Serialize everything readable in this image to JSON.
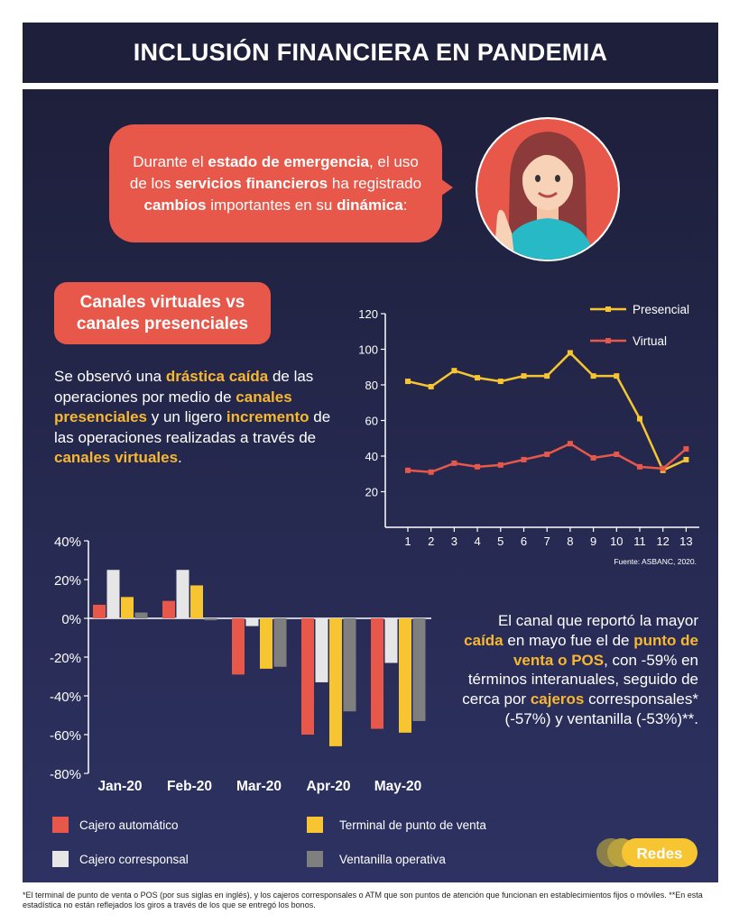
{
  "header": {
    "title": "INCLUSIÓN FINANCIERA EN PANDEMIA"
  },
  "bubble": {
    "t1": "Durante el ",
    "t1b": "estado de emergencia",
    "t2": ", el uso de los ",
    "t2b": "servicios financieros",
    "t3": " ha registrado ",
    "t3b": "cambios",
    "t4": " importantes en su ",
    "t4b": "dinámica",
    "t5": ":"
  },
  "section": {
    "title": "Canales virtuales vs canales presenciales"
  },
  "para1": {
    "p1": "Se observó una ",
    "h1": "drástica caída",
    "p2": " de las operaciones por medio de ",
    "h2": "canales presenciales",
    "p3": " y un ligero ",
    "h3": "incremento",
    "p4": " de las operaciones realizadas a través de ",
    "h4": "canales virtuales",
    "p5": "."
  },
  "para2": {
    "p1": "El canal que reportó la mayor ",
    "h1": "caída",
    "p2": " en mayo fue el de ",
    "h2": "punto de venta o POS",
    "p3": ", con -59% en términos interanuales, seguido de cerca por ",
    "h3": "cajeros",
    "p4": " corresponsales* (-57%) y ventanilla (-53%)**."
  },
  "source": "Fuente: ASBANC, 2020.",
  "legend": {
    "cajero_automatico": "Cajero automático",
    "terminal_pos": "Terminal de punto de venta",
    "cajero_corresponsal": "Cajero corresponsal",
    "ventanilla": "Ventanilla operativa"
  },
  "logo": {
    "text": "Redes"
  },
  "footnote": "*El terminal de punto de venta o POS (por sus siglas en inglés), y los cajeros corresponsales o ATM  que son puntos de atención que funcionan en establecimientos fijos o móviles. **En esta estadística no están reflejados los giros a través de los que se entregó los bonos.",
  "colors": {
    "red": "#e8584a",
    "yellow": "#f7c531",
    "light": "#e6e6e6",
    "gray": "#7f7f7f",
    "navy": "#1e1f3b"
  },
  "chart_data": [
    {
      "type": "line",
      "x": [
        1,
        2,
        3,
        4,
        5,
        6,
        7,
        8,
        9,
        10,
        11,
        12,
        13
      ],
      "x_ticks": [
        "1",
        "2",
        "3",
        "4",
        "5",
        "6",
        "7",
        "8",
        "9",
        "10",
        "11",
        "12",
        "13"
      ],
      "y_ticks": [
        "20",
        "40",
        "60",
        "80",
        "100",
        "120"
      ],
      "ylim": [
        0,
        120
      ],
      "series": [
        {
          "name": "Presencial",
          "color": "#f7c531",
          "values": [
            82,
            79,
            88,
            84,
            82,
            85,
            85,
            98,
            85,
            85,
            61,
            32,
            38
          ]
        },
        {
          "name": "Virtual",
          "color": "#e8584a",
          "values": [
            32,
            31,
            36,
            34,
            35,
            38,
            41,
            47,
            39,
            41,
            34,
            33,
            44
          ]
        }
      ],
      "legend": "top-right",
      "grid": false
    },
    {
      "type": "bar",
      "categories": [
        "Jan-20",
        "Feb-20",
        "Mar-20",
        "Apr-20",
        "May-20"
      ],
      "y_ticks": [
        "40%",
        "20%",
        "0%",
        "-20%",
        "-40%",
        "-60%",
        "-80%"
      ],
      "ylim": [
        -80,
        40
      ],
      "series": [
        {
          "name": "Cajero automático",
          "color": "#e8584a",
          "values": [
            7,
            9,
            -29,
            -60,
            -57
          ]
        },
        {
          "name": "Cajero corresponsal",
          "color": "#e6e6e6",
          "values": [
            25,
            25,
            -4,
            -33,
            -23
          ]
        },
        {
          "name": "Terminal de punto de venta",
          "color": "#f7c531",
          "values": [
            11,
            17,
            -26,
            -66,
            -59
          ]
        },
        {
          "name": "Ventanilla operativa",
          "color": "#7f7f7f",
          "values": [
            3,
            -1,
            -25,
            -48,
            -53
          ]
        }
      ],
      "legend": "bottom",
      "grid": false
    }
  ]
}
